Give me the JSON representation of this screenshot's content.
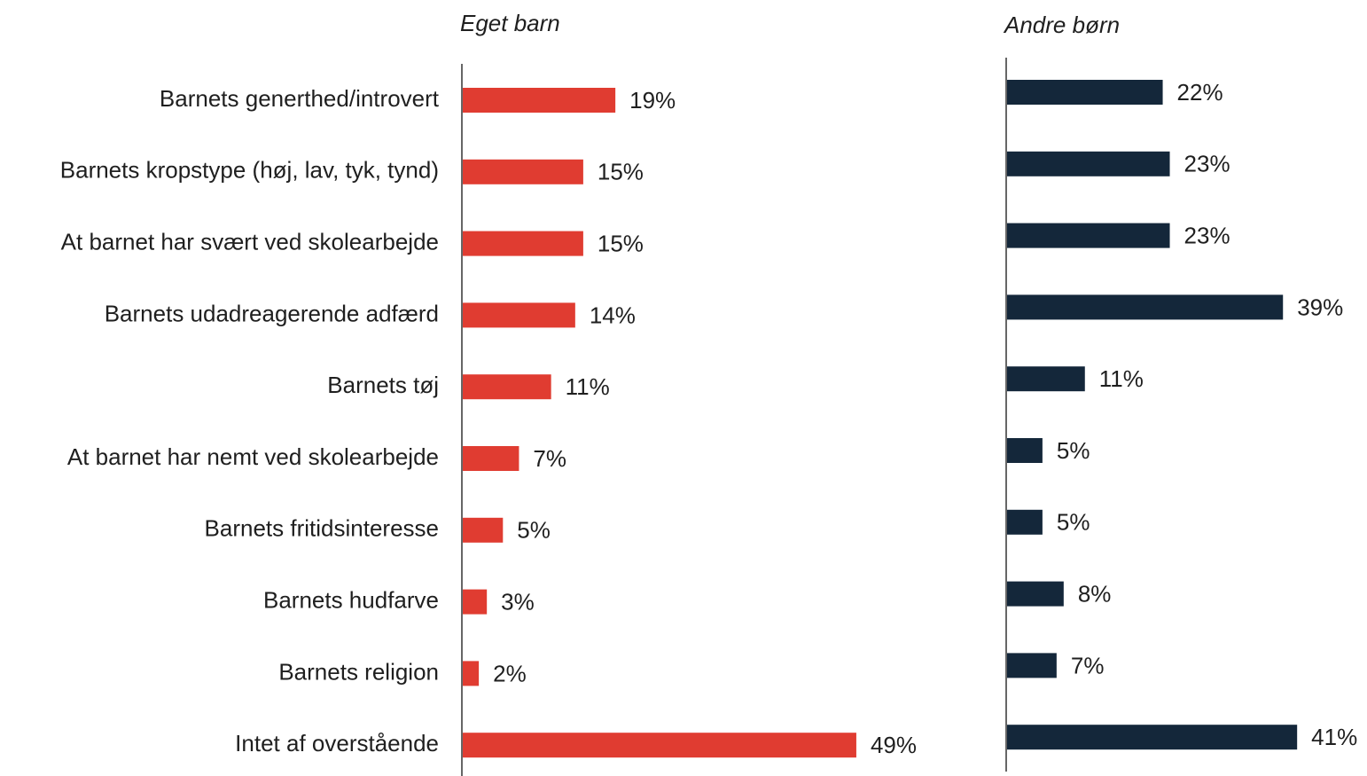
{
  "chart_data": [
    {
      "type": "bar",
      "orientation": "horizontal",
      "title": "Eget barn",
      "color": "#e03c31",
      "categories": [
        "Barnets generthed/introvert",
        "Barnets kropstype (høj, lav, tyk, tynd)",
        "At barnet har svært ved skolearbejde",
        "Barnets udadreagerende adfærd",
        "Barnets tøj",
        "At barnet har nemt ved skolearbejde",
        "Barnets fritidsinteresse",
        "Barnets hudfarve",
        "Barnets religion",
        "Intet af overstående"
      ],
      "values": [
        19,
        15,
        15,
        14,
        11,
        7,
        5,
        3,
        2,
        49
      ],
      "value_labels": [
        "19%",
        "15%",
        "15%",
        "14%",
        "11%",
        "7%",
        "5%",
        "3%",
        "2%",
        "49%"
      ],
      "xlim": [
        0,
        50
      ]
    },
    {
      "type": "bar",
      "orientation": "horizontal",
      "title": "Andre børn",
      "color": "#14273a",
      "values": [
        22,
        23,
        23,
        39,
        11,
        5,
        5,
        8,
        7,
        41
      ],
      "value_labels": [
        "22%",
        "23%",
        "23%",
        "39%",
        "11%",
        "5%",
        "5%",
        "8%",
        "7%",
        "41%"
      ],
      "xlim": [
        0,
        50
      ]
    }
  ]
}
